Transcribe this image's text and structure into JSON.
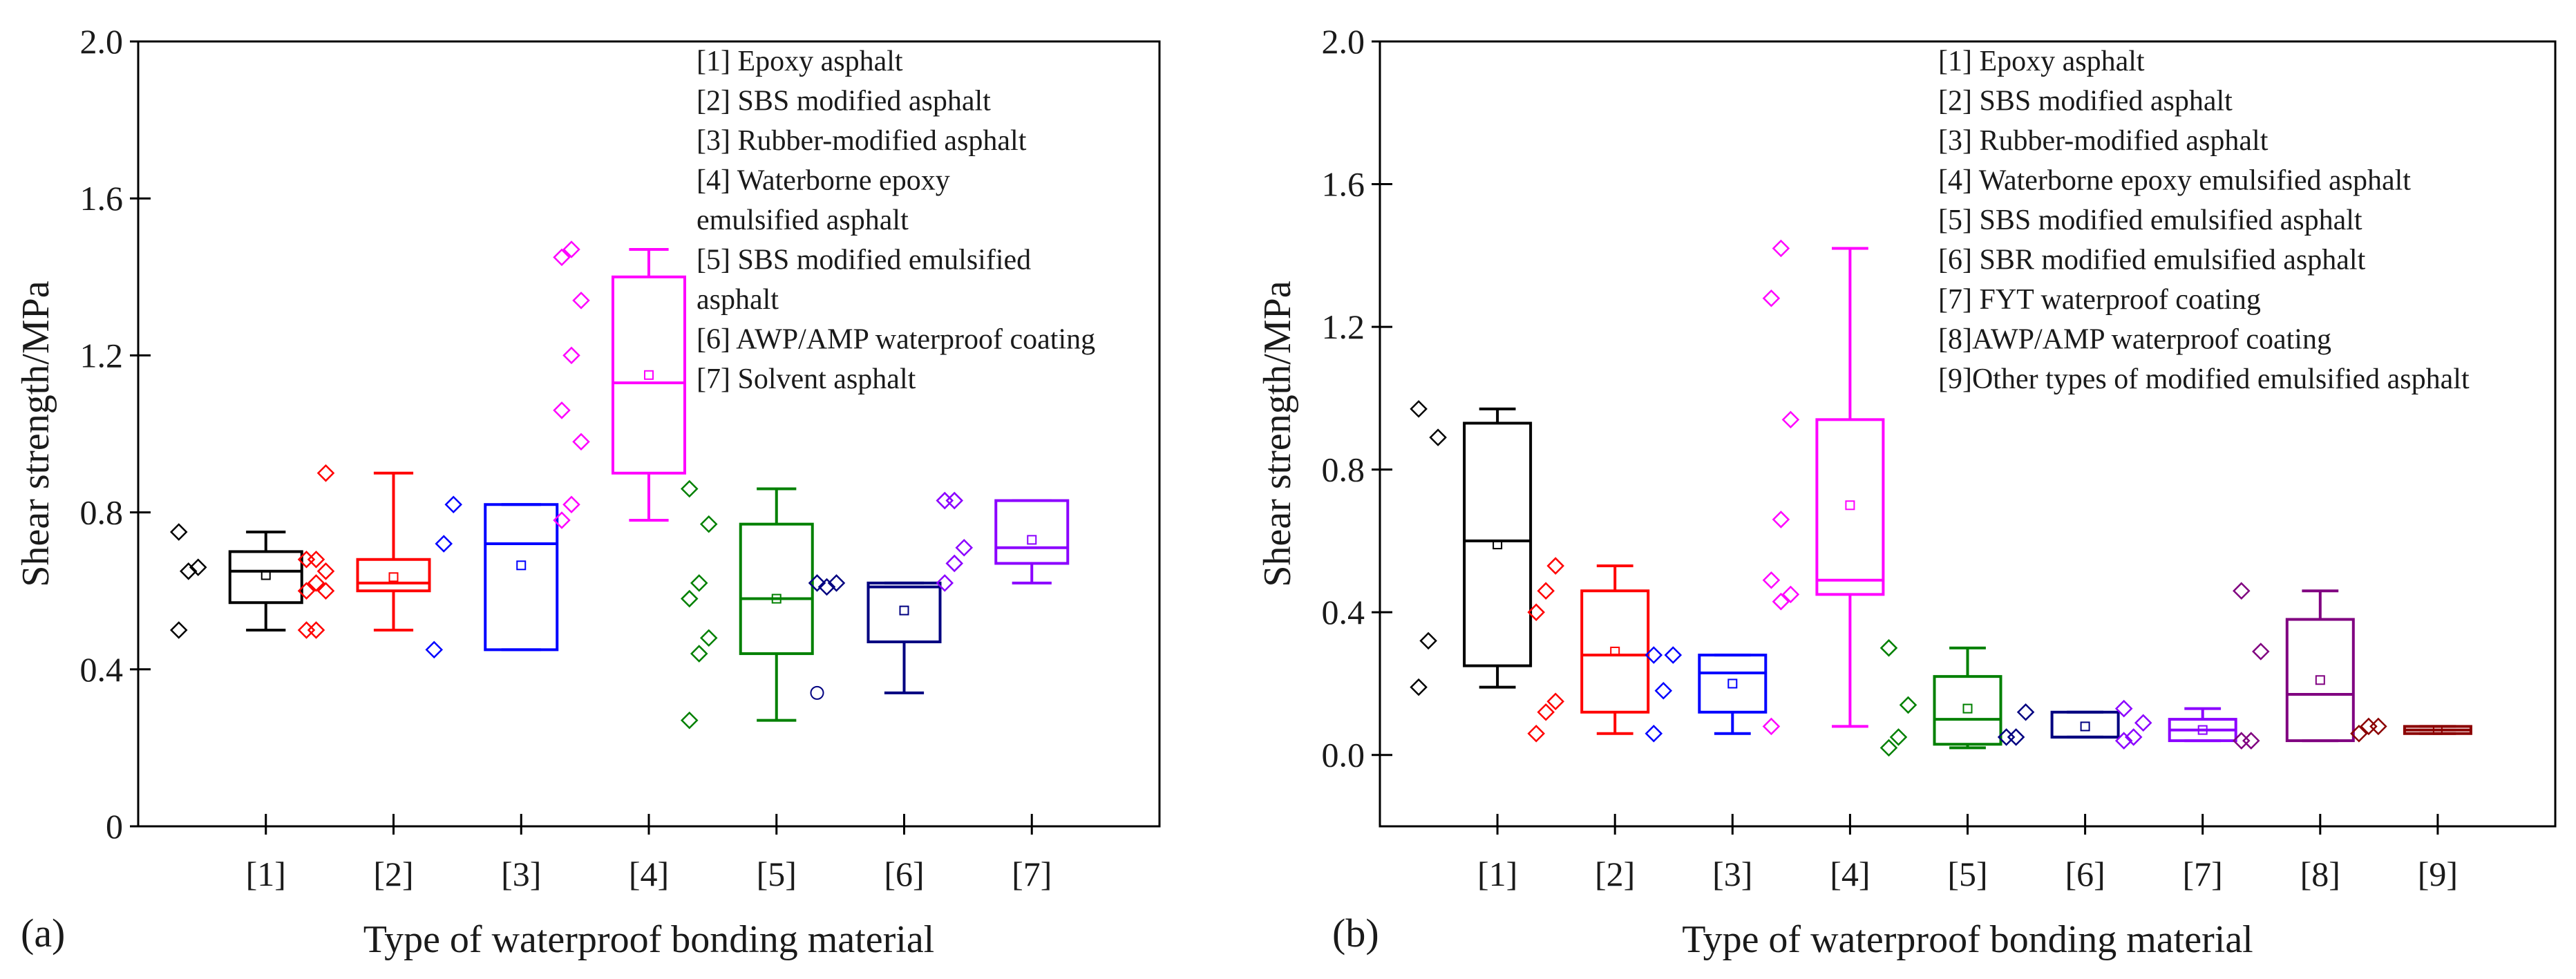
{
  "figure": {
    "panels": [
      {
        "id": "a",
        "label": "(a)"
      },
      {
        "id": "b",
        "label": "(b)"
      }
    ]
  },
  "chart_data": [
    {
      "type": "box",
      "panel": "(a)",
      "xlabel": "Type of waterproof bonding material",
      "ylabel": "Shear strength/MPa",
      "ylim": [
        0,
        2.0
      ],
      "yticks": [
        "0",
        "0.4",
        "0.8",
        "1.2",
        "1.6",
        "2.0"
      ],
      "ytick_values": [
        0,
        0.4,
        0.8,
        1.2,
        1.6,
        2.0
      ],
      "categories": [
        "[1]",
        "[2]",
        "[3]",
        "[4]",
        "[5]",
        "[6]",
        "[7]"
      ],
      "legend": [
        "[1] Epoxy asphalt",
        "[2] SBS modified asphalt",
        "[3] Rubber-modified asphalt",
        "[4] Waterborne epoxy",
        "     emulsified asphalt",
        "[5] SBS modified emulsified",
        "     asphalt",
        "[6] AWP/AMP waterproof coating",
        "[7] Solvent asphalt"
      ],
      "legend_position": "top-right",
      "grid": false,
      "boxes": [
        {
          "category": "[1]",
          "color": "#000000",
          "min": 0.5,
          "q1": 0.57,
          "median": 0.65,
          "q3": 0.7,
          "max": 0.75,
          "mean": 0.64,
          "points": [
            0.5,
            0.65,
            0.66,
            0.75
          ]
        },
        {
          "category": "[2]",
          "color": "#ff0000",
          "min": 0.5,
          "q1": 0.6,
          "median": 0.62,
          "q3": 0.68,
          "max": 0.9,
          "mean": 0.635,
          "points": [
            0.5,
            0.5,
            0.6,
            0.6,
            0.62,
            0.65,
            0.68,
            0.68,
            0.9
          ]
        },
        {
          "category": "[3]",
          "color": "#0000ff",
          "min": 0.45,
          "q1": 0.45,
          "median": 0.72,
          "q3": 0.82,
          "max": 0.82,
          "mean": 0.665,
          "points": [
            0.45,
            0.72,
            0.82
          ]
        },
        {
          "category": "[4]",
          "color": "#ff00ff",
          "min": 0.78,
          "q1": 0.9,
          "median": 1.13,
          "q3": 1.4,
          "max": 1.47,
          "mean": 1.15,
          "points": [
            0.78,
            0.82,
            0.98,
            1.06,
            1.2,
            1.34,
            1.45,
            1.47
          ]
        },
        {
          "category": "[5]",
          "color": "#008000",
          "min": 0.27,
          "q1": 0.44,
          "median": 0.58,
          "q3": 0.77,
          "max": 0.86,
          "mean": 0.58,
          "points": [
            0.27,
            0.44,
            0.48,
            0.58,
            0.62,
            0.77,
            0.86
          ]
        },
        {
          "category": "[6]",
          "color": "#000080",
          "min": 0.34,
          "q1": 0.47,
          "median": 0.61,
          "q3": 0.62,
          "max": 0.62,
          "mean": 0.55,
          "points": [
            0.34,
            0.61,
            0.62,
            0.62
          ]
        },
        {
          "category": "[7]",
          "color": "#8b00ff",
          "min": 0.62,
          "q1": 0.67,
          "median": 0.71,
          "q3": 0.83,
          "max": 0.83,
          "mean": 0.73,
          "points": [
            0.62,
            0.67,
            0.71,
            0.83,
            0.83
          ]
        }
      ]
    },
    {
      "type": "box",
      "panel": "(b)",
      "xlabel": "Type of waterproof bonding material",
      "ylabel": "Shear strength/MPa",
      "ylim": [
        -0.2,
        2.0
      ],
      "yticks": [
        "0.0",
        "0.4",
        "0.8",
        "1.2",
        "1.6",
        "2.0"
      ],
      "ytick_values": [
        0,
        0.4,
        0.8,
        1.2,
        1.6,
        2.0
      ],
      "categories": [
        "[1]",
        "[2]",
        "[3]",
        "[4]",
        "[5]",
        "[6]",
        "[7]",
        "[8]",
        "[9]"
      ],
      "legend": [
        "[1] Epoxy asphalt",
        "[2] SBS modified asphalt",
        "[3] Rubber-modified asphalt",
        "[4] Waterborne epoxy emulsified asphalt",
        "[5] SBS modified emulsified asphalt",
        "[6] SBR modified emulsified asphalt",
        "[7] FYT waterproof coating",
        "[8]AWP/AMP waterproof coating",
        "[9]Other types of modified emulsified asphalt"
      ],
      "legend_position": "top-right",
      "grid": false,
      "boxes": [
        {
          "category": "[1]",
          "color": "#000000",
          "min": 0.19,
          "q1": 0.25,
          "median": 0.6,
          "q3": 0.93,
          "max": 0.97,
          "mean": 0.59,
          "points": [
            0.19,
            0.32,
            0.89,
            0.97
          ]
        },
        {
          "category": "[2]",
          "color": "#ff0000",
          "min": 0.06,
          "q1": 0.12,
          "median": 0.28,
          "q3": 0.46,
          "max": 0.53,
          "mean": 0.29,
          "points": [
            0.06,
            0.12,
            0.15,
            0.4,
            0.46,
            0.53
          ]
        },
        {
          "category": "[3]",
          "color": "#0000ff",
          "min": 0.06,
          "q1": 0.12,
          "median": 0.23,
          "q3": 0.28,
          "max": 0.28,
          "mean": 0.2,
          "points": [
            0.06,
            0.18,
            0.28,
            0.28
          ]
        },
        {
          "category": "[4]",
          "color": "#ff00ff",
          "min": 0.08,
          "q1": 0.45,
          "median": 0.49,
          "q3": 0.94,
          "max": 1.42,
          "mean": 0.7,
          "points": [
            0.08,
            0.43,
            0.45,
            0.49,
            0.66,
            0.94,
            1.28,
            1.42
          ]
        },
        {
          "category": "[5]",
          "color": "#008000",
          "min": 0.02,
          "q1": 0.03,
          "median": 0.1,
          "q3": 0.22,
          "max": 0.3,
          "mean": 0.13,
          "points": [
            0.02,
            0.05,
            0.14,
            0.3
          ]
        },
        {
          "category": "[6]",
          "color": "#000080",
          "min": 0.05,
          "q1": 0.05,
          "median": 0.05,
          "q3": 0.12,
          "max": 0.12,
          "mean": 0.08,
          "points": [
            0.05,
            0.05,
            0.12
          ]
        },
        {
          "category": "[7]",
          "color": "#8b00ff",
          "min": 0.04,
          "q1": 0.04,
          "median": 0.07,
          "q3": 0.1,
          "max": 0.13,
          "mean": 0.07,
          "points": [
            0.04,
            0.05,
            0.09,
            0.13
          ]
        },
        {
          "category": "[8]",
          "color": "#800080",
          "min": 0.04,
          "q1": 0.04,
          "median": 0.17,
          "q3": 0.38,
          "max": 0.46,
          "mean": 0.21,
          "points": [
            0.04,
            0.04,
            0.29,
            0.46
          ]
        },
        {
          "category": "[9]",
          "color": "#8b0000",
          "min": 0.06,
          "q1": 0.06,
          "median": 0.07,
          "q3": 0.08,
          "max": 0.08,
          "mean": 0.07,
          "points": [
            0.06,
            0.08,
            0.08
          ]
        }
      ]
    }
  ]
}
